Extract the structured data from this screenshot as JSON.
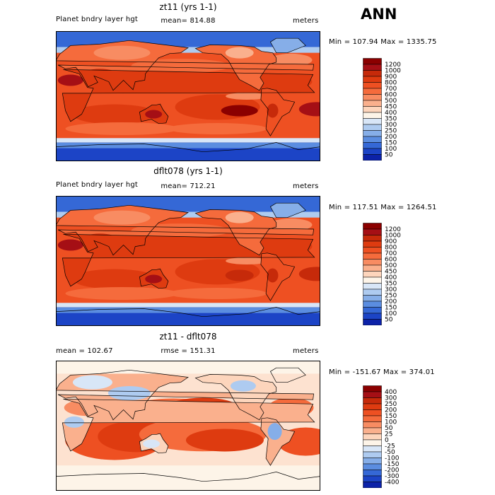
{
  "season": "ANN",
  "panels": [
    {
      "title": "zt11 (yrs 1-1)",
      "left": "Planet bndry layer hgt",
      "center": "mean= 814.88",
      "right": "meters",
      "minmax": "Min = 107.94 Max = 1335.75",
      "levels": [
        "1200",
        "1000",
        "900",
        "800",
        "700",
        "600",
        "500",
        "450",
        "400",
        "350",
        "300",
        "250",
        "200",
        "150",
        "100",
        "50"
      ],
      "colors": [
        "#8b0000",
        "#a50f15",
        "#c62a0a",
        "#de3b10",
        "#ee5022",
        "#f56b3c",
        "#f88c62",
        "#fab08d",
        "#fdd5bc",
        "#fdf4e8",
        "#d8e6f7",
        "#aecbf0",
        "#86aee8",
        "#5b8de0",
        "#3568d6",
        "#1c44c6",
        "#0c22a8"
      ]
    },
    {
      "title": "dflt078 (yrs 1-1)",
      "left": "Planet bndry layer hgt",
      "center": "mean= 712.21",
      "right": "meters",
      "minmax": "Min = 117.51 Max = 1264.51",
      "levels": [
        "1200",
        "1000",
        "900",
        "800",
        "700",
        "600",
        "500",
        "450",
        "400",
        "350",
        "300",
        "250",
        "200",
        "150",
        "100",
        "50"
      ],
      "colors": [
        "#8b0000",
        "#a50f15",
        "#c62a0a",
        "#de3b10",
        "#ee5022",
        "#f56b3c",
        "#f88c62",
        "#fab08d",
        "#fdd5bc",
        "#fdf4e8",
        "#d8e6f7",
        "#aecbf0",
        "#86aee8",
        "#5b8de0",
        "#3568d6",
        "#1c44c6",
        "#0c22a8"
      ]
    },
    {
      "title": "zt11 - dflt078",
      "left": "mean = 102.67",
      "center": "rmse = 151.31",
      "right": "meters",
      "minmax": "Min = -151.67 Max = 374.01",
      "levels": [
        "400",
        "300",
        "250",
        "200",
        "150",
        "100",
        "50",
        "25",
        "0",
        "-25",
        "-50",
        "-100",
        "-150",
        "-200",
        "-300",
        "-400"
      ],
      "colors": [
        "#8b0000",
        "#a50f15",
        "#c62a0a",
        "#de3b10",
        "#ee5022",
        "#f56b3c",
        "#f88c62",
        "#fab08d",
        "#fdd5bc",
        "#fdf4e8",
        "#d8e6f7",
        "#aecbf0",
        "#86aee8",
        "#5b8de0",
        "#3568d6",
        "#1c44c6",
        "#0c22a8"
      ]
    }
  ],
  "chart_data": [
    {
      "type": "heatmap",
      "title": "zt11 (yrs 1-1)",
      "variable": "Planet bndry layer hgt",
      "units": "meters",
      "mean": 814.88,
      "min": 107.94,
      "max": 1335.75,
      "contour_levels": [
        50,
        100,
        150,
        200,
        250,
        300,
        350,
        400,
        450,
        500,
        600,
        700,
        800,
        900,
        1000,
        1200
      ]
    },
    {
      "type": "heatmap",
      "title": "dflt078 (yrs 1-1)",
      "variable": "Planet bndry layer hgt",
      "units": "meters",
      "mean": 712.21,
      "min": 117.51,
      "max": 1264.51,
      "contour_levels": [
        50,
        100,
        150,
        200,
        250,
        300,
        350,
        400,
        450,
        500,
        600,
        700,
        800,
        900,
        1000,
        1200
      ]
    },
    {
      "type": "heatmap",
      "title": "zt11 - dflt078",
      "units": "meters",
      "mean": 102.67,
      "rmse": 151.31,
      "min": -151.67,
      "max": 374.01,
      "contour_levels": [
        -400,
        -300,
        -200,
        -150,
        -100,
        -50,
        -25,
        0,
        25,
        50,
        100,
        150,
        200,
        250,
        300,
        400
      ]
    }
  ]
}
